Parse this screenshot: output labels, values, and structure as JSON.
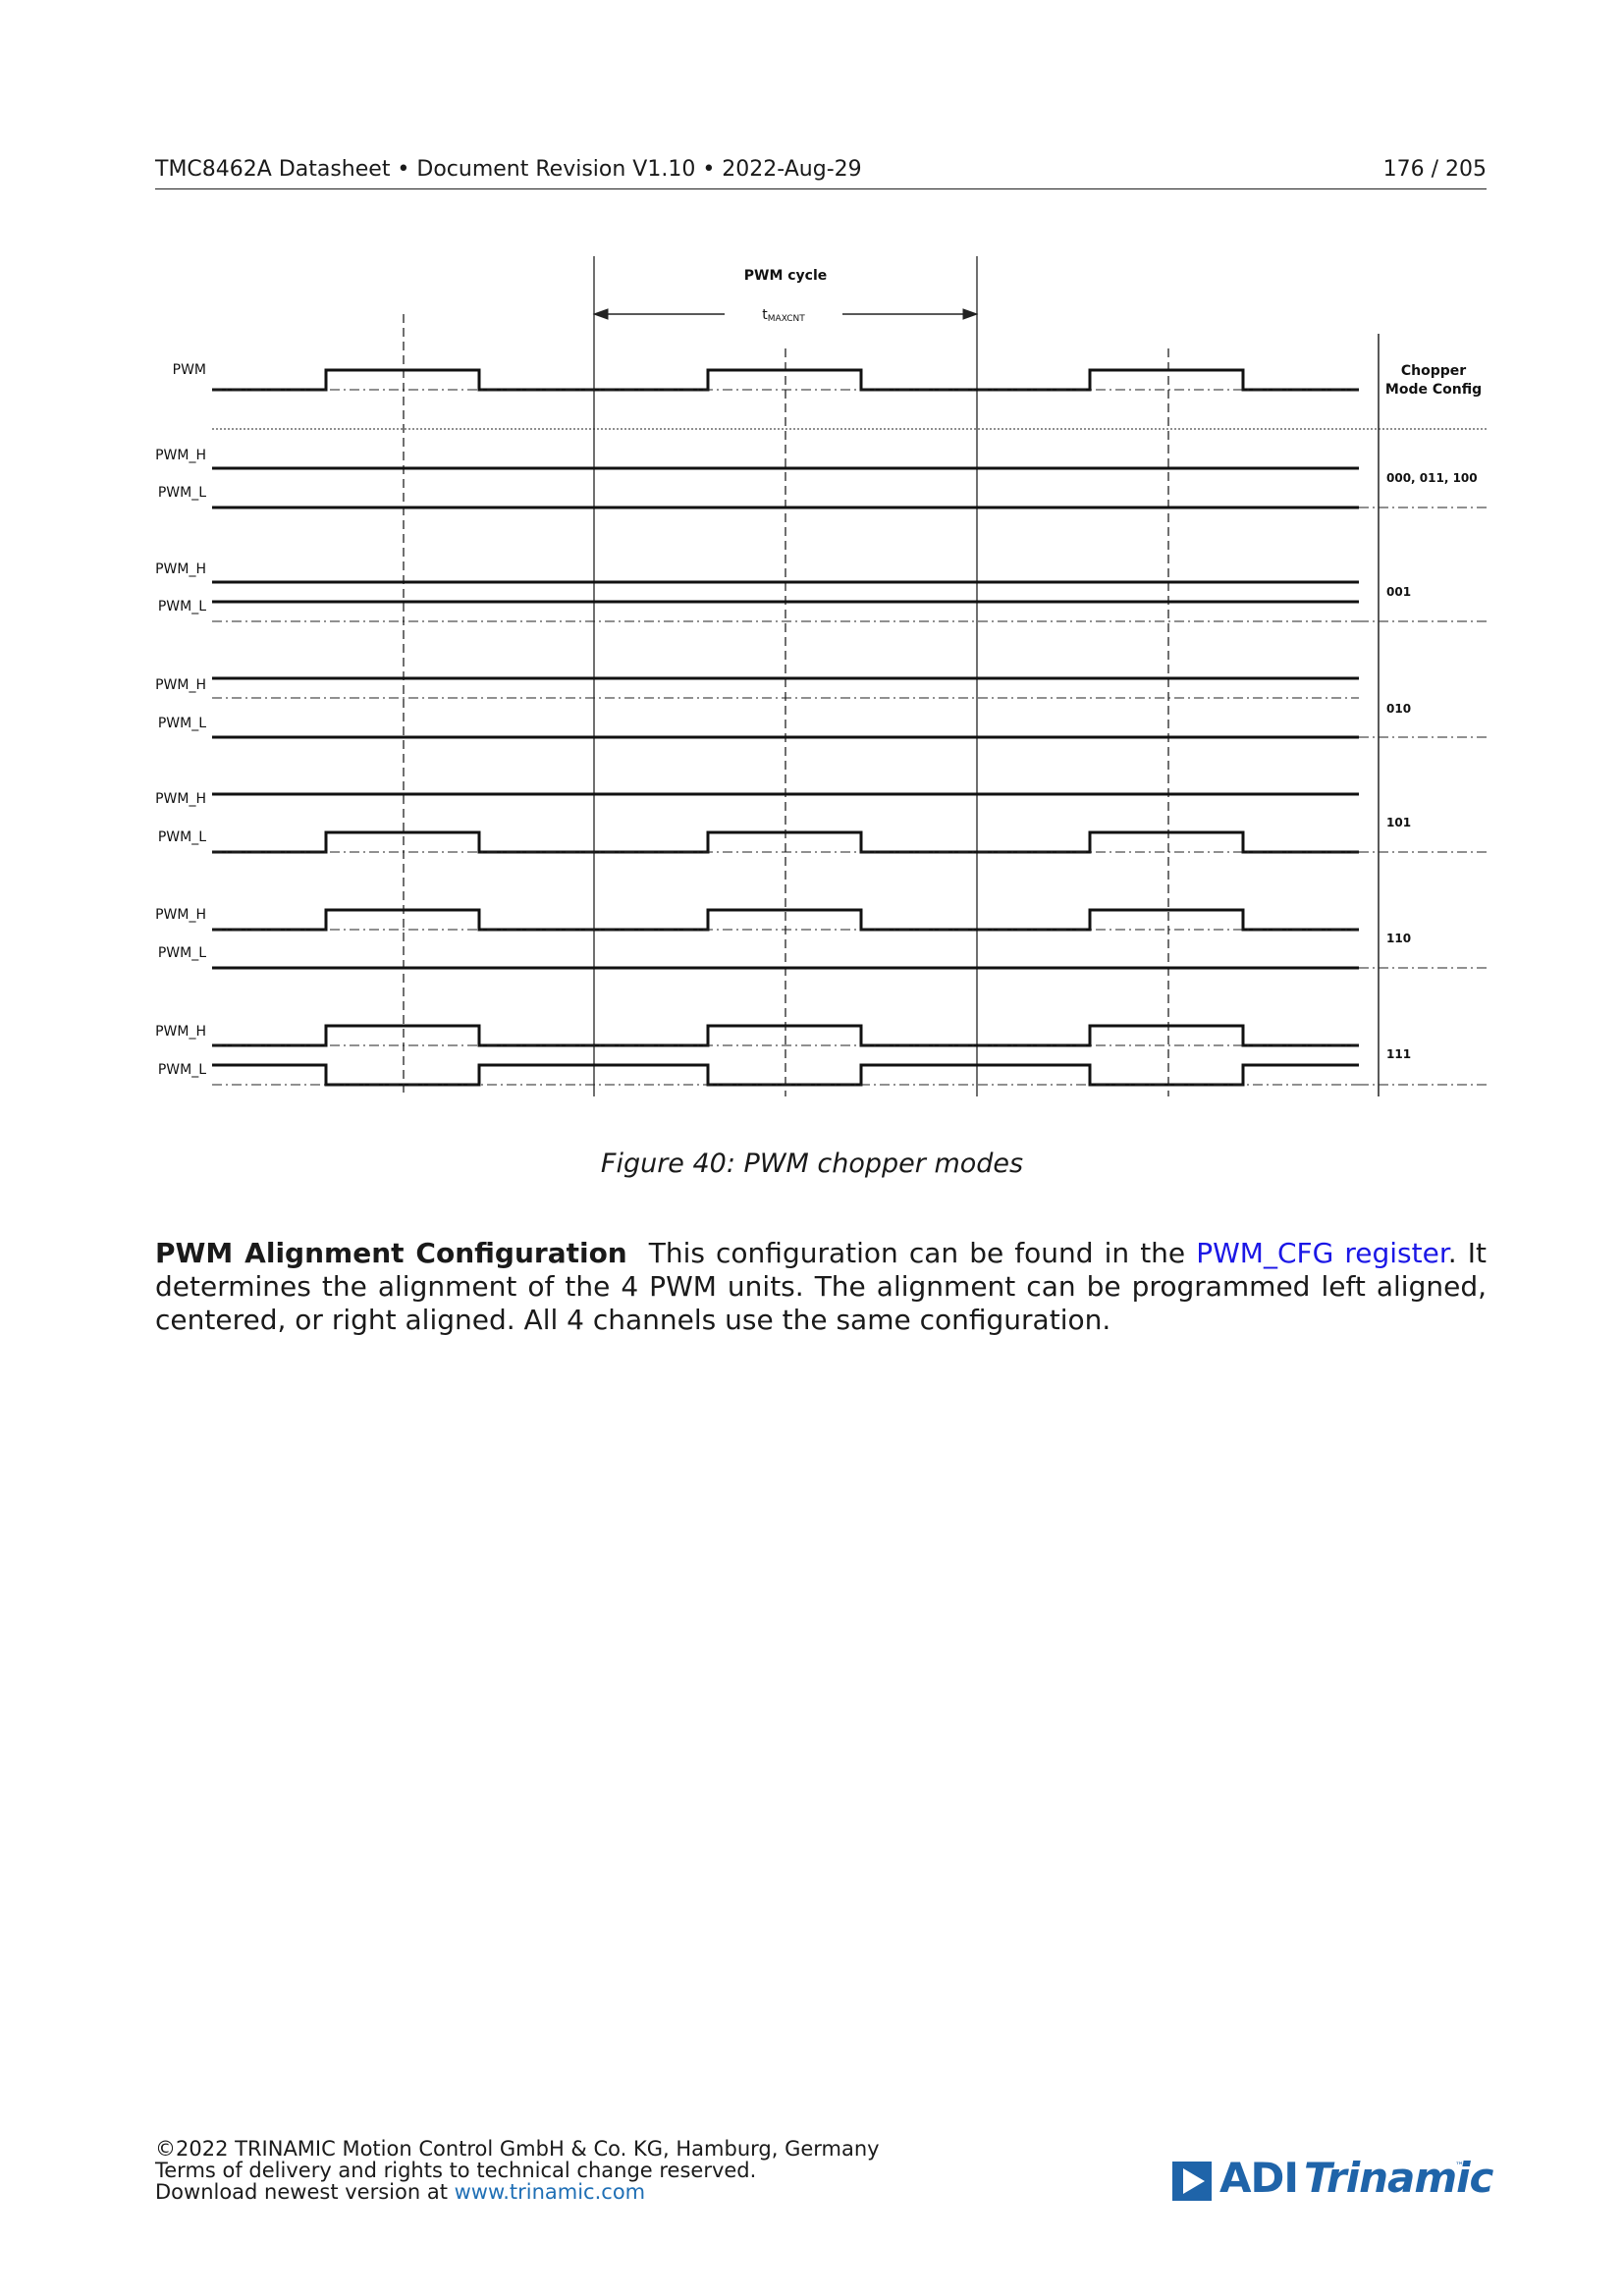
{
  "header": {
    "left": "TMC8462A Datasheet • Document Revision V1.10 •  2022-Aug-29",
    "right": "176 / 205"
  },
  "diagram": {
    "title": "PWM cycle",
    "tmax_main": "t",
    "tmax_sub": "MAXCNT",
    "pwm_label": "PWM",
    "header_label_line1": "Chopper",
    "header_label_line2": "Mode Config",
    "modes": [
      {
        "config": "000, 011, 100",
        "h_label": "PWM_H",
        "l_label": "PWM_L"
      },
      {
        "config": "001",
        "h_label": "PWM_H",
        "l_label": "PWM_L"
      },
      {
        "config": "010",
        "h_label": "PWM_H",
        "l_label": "PWM_L"
      },
      {
        "config": "101",
        "h_label": "PWM_H",
        "l_label": "PWM_L"
      },
      {
        "config": "110",
        "h_label": "PWM_H",
        "l_label": "PWM_L"
      },
      {
        "config": "111",
        "h_label": "PWM_H",
        "l_label": "PWM_L"
      }
    ]
  },
  "caption": "Figure 40: PWM chopper modes",
  "paragraph": {
    "heading": "PWM Alignment Configuration",
    "text_before": "This configuration can be found in the ",
    "link": "PWM_CFG register",
    "text_after": ".  It determines the alignment of the 4 PWM units.  The alignment can be programmed left aligned, centered, or right aligned. All 4 channels use the same configuration."
  },
  "footer": {
    "line1": "©2022 TRINAMIC Motion Control GmbH & Co. KG, Hamburg, Germany",
    "line2": "Terms of delivery and rights to technical change reserved.",
    "line3_text": "Download newest version at ",
    "line3_link": "www.trinamic.com"
  },
  "logo": {
    "adi": "ADI",
    "trinamic": "Trinamic",
    "tm": "™"
  }
}
